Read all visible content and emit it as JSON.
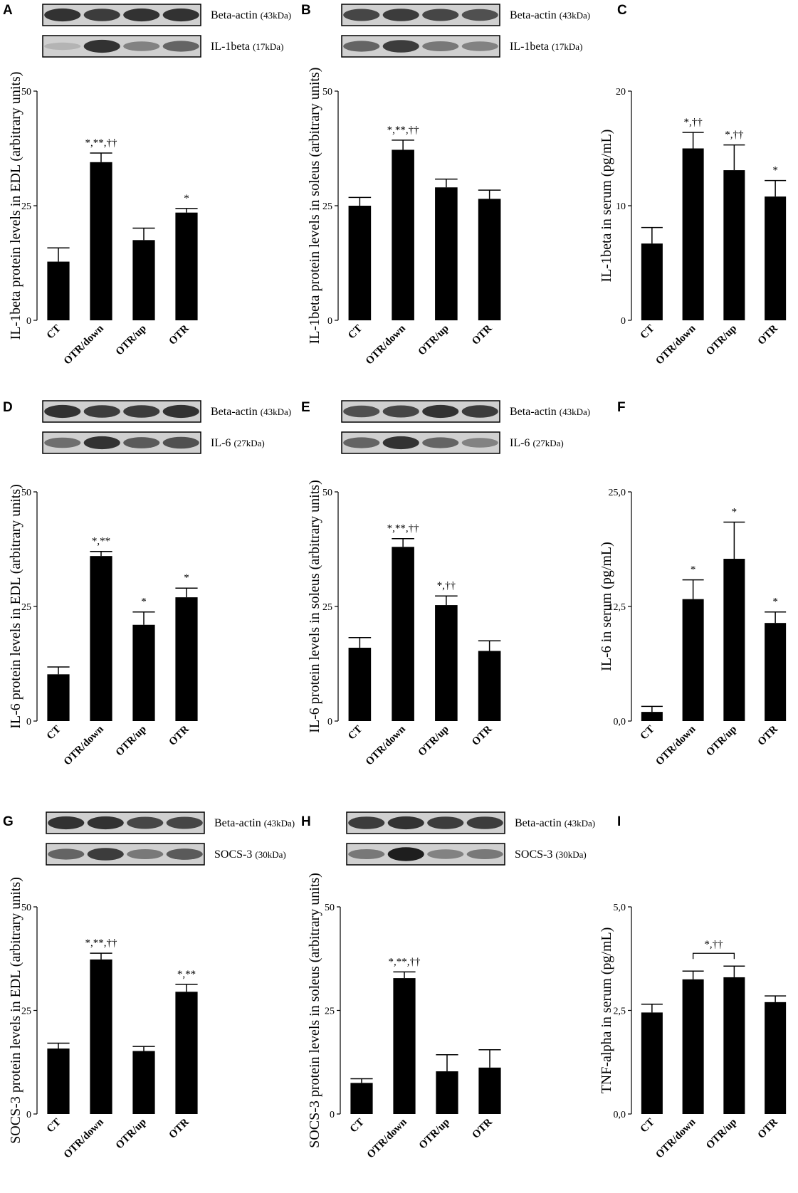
{
  "categories": [
    "CT",
    "OTR/down",
    "OTR/up",
    "OTR"
  ],
  "bar_color": "#000000",
  "panels": [
    {
      "letter": "A",
      "blots": [
        {
          "name": "Beta-actin",
          "kda": "(43kDa)",
          "intensities": [
            0.85,
            0.8,
            0.85,
            0.85
          ]
        },
        {
          "name": "IL-1beta",
          "kda": "(17kDa)",
          "intensities": [
            0.2,
            0.85,
            0.45,
            0.6
          ]
        }
      ],
      "chart_data": {
        "type": "bar",
        "categories": [
          "CT",
          "OTR/down",
          "OTR/up",
          "OTR"
        ],
        "values": [
          12.8,
          34.5,
          17.5,
          23.5
        ],
        "errors": [
          3.0,
          2.0,
          2.6,
          0.9
        ],
        "sig": [
          "",
          "*,**,††",
          "",
          "*"
        ],
        "ylabel": "IL-1beta protein levels in EDL (arbitrary units)",
        "ylim": [
          0,
          50
        ],
        "yticks": [
          "0",
          "25",
          "50"
        ],
        "bracket": null
      }
    },
    {
      "letter": "B",
      "blots": [
        {
          "name": "Beta-actin",
          "kda": "(43kDa)",
          "intensities": [
            0.75,
            0.8,
            0.75,
            0.7
          ]
        },
        {
          "name": "IL-1beta",
          "kda": "(17kDa)",
          "intensities": [
            0.6,
            0.8,
            0.5,
            0.45
          ]
        }
      ],
      "chart_data": {
        "type": "bar",
        "categories": [
          "CT",
          "OTR/down",
          "OTR/up",
          "OTR"
        ],
        "values": [
          25.0,
          37.2,
          29.0,
          26.5
        ],
        "errors": [
          1.8,
          2.1,
          1.8,
          1.9
        ],
        "sig": [
          "",
          "*,**,††",
          "",
          ""
        ],
        "ylabel": "IL-1beta protein levels in soleus (arbitrary units)",
        "ylim": [
          0,
          50
        ],
        "yticks": [
          "0",
          "25",
          "50"
        ],
        "bracket": null
      }
    },
    {
      "letter": "C",
      "blots": [],
      "chart_data": {
        "type": "bar",
        "categories": [
          "CT",
          "OTR/down",
          "OTR/up",
          "OTR"
        ],
        "values": [
          6.7,
          15.0,
          13.1,
          10.8
        ],
        "errors": [
          1.4,
          1.4,
          2.2,
          1.4
        ],
        "sig": [
          "",
          "*,††",
          "*,††",
          "*"
        ],
        "ylabel": "IL-1beta in serum (pg/mL)",
        "ylim": [
          0,
          20
        ],
        "yticks": [
          "0",
          "10",
          "20"
        ],
        "bracket": null
      }
    },
    {
      "letter": "D",
      "blots": [
        {
          "name": "Beta-actin",
          "kda": "(43kDa)",
          "intensities": [
            0.85,
            0.8,
            0.8,
            0.85
          ]
        },
        {
          "name": "IL-6",
          "kda": "(27kDa)",
          "intensities": [
            0.55,
            0.85,
            0.65,
            0.7
          ]
        }
      ],
      "chart_data": {
        "type": "bar",
        "categories": [
          "CT",
          "OTR/down",
          "OTR/up",
          "OTR"
        ],
        "values": [
          10.2,
          36.0,
          21.0,
          27.0
        ],
        "errors": [
          1.6,
          1.0,
          2.8,
          2.0
        ],
        "sig": [
          "",
          "*,**",
          "*",
          "*"
        ],
        "ylabel": "IL-6 protein levels in EDL (arbitrary units)",
        "ylim": [
          0,
          50
        ],
        "yticks": [
          "0",
          "25",
          "50"
        ],
        "bracket": null
      }
    },
    {
      "letter": "E",
      "blots": [
        {
          "name": "Beta-actin",
          "kda": "(43kDa)",
          "intensities": [
            0.7,
            0.75,
            0.85,
            0.8
          ]
        },
        {
          "name": "IL-6",
          "kda": "(27kDa)",
          "intensities": [
            0.6,
            0.85,
            0.6,
            0.45
          ]
        }
      ],
      "chart_data": {
        "type": "bar",
        "categories": [
          "CT",
          "OTR/down",
          "OTR/up",
          "OTR"
        ],
        "values": [
          16.0,
          38.0,
          25.3,
          15.3
        ],
        "errors": [
          2.2,
          1.8,
          2.0,
          2.2
        ],
        "sig": [
          "",
          "*,**,††",
          "*,††",
          ""
        ],
        "ylabel": "IL-6 protein levels in soleus (arbitrary units)",
        "ylim": [
          0,
          50
        ],
        "yticks": [
          "0",
          "25",
          "50"
        ],
        "bracket": null
      }
    },
    {
      "letter": "F",
      "blots": [],
      "chart_data": {
        "type": "bar",
        "categories": [
          "CT",
          "OTR/down",
          "OTR/up",
          "OTR"
        ],
        "values": [
          1.0,
          13.3,
          17.7,
          10.7
        ],
        "errors": [
          0.6,
          2.1,
          4.0,
          1.2
        ],
        "sig": [
          "",
          "*",
          "*",
          "*"
        ],
        "ylabel": "IL-6 in serum (pg/mL)",
        "ylim": [
          0,
          25
        ],
        "yticks": [
          "0,0",
          "12,5",
          "25,0"
        ],
        "bracket": null
      }
    },
    {
      "letter": "G",
      "blots": [
        {
          "name": "Beta-actin",
          "kda": "(43kDa)",
          "intensities": [
            0.85,
            0.85,
            0.75,
            0.75
          ]
        },
        {
          "name": "SOCS-3",
          "kda": "(30kDa)",
          "intensities": [
            0.6,
            0.8,
            0.5,
            0.65
          ]
        }
      ],
      "chart_data": {
        "type": "bar",
        "categories": [
          "CT",
          "OTR/down",
          "OTR/up",
          "OTR"
        ],
        "values": [
          15.8,
          37.3,
          15.2,
          29.5
        ],
        "errors": [
          1.3,
          1.5,
          1.1,
          1.8
        ],
        "sig": [
          "",
          "*,**,††",
          "",
          "*,**"
        ],
        "ylabel": "SOCS-3 protein levels in EDL (arbitrary units)",
        "ylim": [
          0,
          50
        ],
        "yticks": [
          "0",
          "25",
          "50"
        ],
        "bracket": null
      }
    },
    {
      "letter": "H",
      "blots": [
        {
          "name": "Beta-actin",
          "kda": "(43kDa)",
          "intensities": [
            0.8,
            0.85,
            0.8,
            0.8
          ]
        },
        {
          "name": "SOCS-3",
          "kda": "(30kDa)",
          "intensities": [
            0.5,
            0.95,
            0.45,
            0.5
          ]
        }
      ],
      "chart_data": {
        "type": "bar",
        "categories": [
          "CT",
          "OTR/down",
          "OTR/up",
          "OTR"
        ],
        "values": [
          7.5,
          32.8,
          10.3,
          11.2
        ],
        "errors": [
          1.0,
          1.5,
          4.0,
          4.3
        ],
        "sig": [
          "",
          "*,**,††",
          "",
          ""
        ],
        "ylabel": "SOCS-3 protein levels in soleus (arbitrary units)",
        "ylim": [
          0,
          50
        ],
        "yticks": [
          "0",
          "25",
          "50"
        ],
        "bracket": null
      }
    },
    {
      "letter": "I",
      "blots": [],
      "chart_data": {
        "type": "bar",
        "categories": [
          "CT",
          "OTR/down",
          "OTR/up",
          "OTR"
        ],
        "values": [
          2.45,
          3.25,
          3.3,
          2.7
        ],
        "errors": [
          0.2,
          0.2,
          0.27,
          0.15
        ],
        "sig": [
          "",
          "",
          "",
          ""
        ],
        "ylabel": "TNF-alpha in serum (pg/mL)",
        "ylim": [
          0,
          5
        ],
        "yticks": [
          "0,0",
          "2,5",
          "5,0"
        ],
        "bracket": {
          "from": 1,
          "to": 2,
          "label": "*,††"
        }
      }
    }
  ]
}
